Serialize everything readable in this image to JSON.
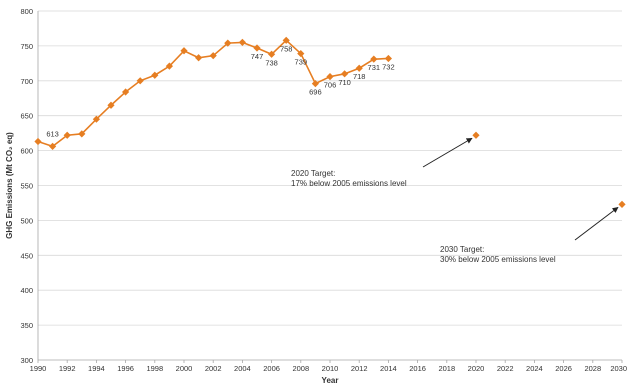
{
  "chart_data": {
    "type": "line",
    "xlabel": "Year",
    "ylabel": "GHG Emissions (Mt CO₂ eq)",
    "xlim": [
      1990,
      2030
    ],
    "ylim": [
      300,
      800
    ],
    "x_ticks": [
      1990,
      1992,
      1994,
      1996,
      1998,
      2000,
      2002,
      2004,
      2006,
      2008,
      2010,
      2012,
      2014,
      2016,
      2018,
      2020,
      2022,
      2024,
      2026,
      2028,
      2030
    ],
    "x_tick_labels": [
      "1990",
      "1992",
      "1994",
      "1996",
      "1998",
      "2000",
      "2002",
      "2004",
      "2006",
      "2008",
      "2010",
      "2012",
      "2014",
      "2016",
      "2018",
      "2020",
      "2022",
      "2024",
      "2026",
      "2028",
      "2030"
    ],
    "y_ticks": [
      300,
      350,
      400,
      450,
      500,
      550,
      600,
      650,
      700,
      750,
      800
    ],
    "y_tick_labels": [
      "300",
      "350",
      "400",
      "450",
      "500",
      "550",
      "600",
      "650",
      "700",
      "750",
      "800"
    ],
    "grid": "horizontal",
    "series_color": "#e67e22",
    "series": [
      {
        "x": [
          1990,
          1991,
          1992,
          1993,
          1994,
          1995,
          1996,
          1997,
          1998,
          1999,
          2000,
          2001,
          2002,
          2003,
          2004,
          2005,
          2006,
          2007,
          2008,
          2009,
          2010,
          2011,
          2012,
          2013,
          2014
        ],
        "values": [
          613,
          606,
          622,
          624,
          645,
          665,
          684,
          700,
          708,
          721,
          743,
          733,
          736,
          754,
          755,
          747,
          738,
          758,
          739,
          696,
          706,
          710,
          718,
          731,
          732
        ]
      }
    ],
    "data_labels": [
      {
        "x": 1991,
        "y": 613,
        "text": "613",
        "pos": "above"
      },
      {
        "x": 2005,
        "y": 747,
        "text": "747",
        "pos": "below"
      },
      {
        "x": 2006,
        "y": 738,
        "text": "738",
        "pos": "below"
      },
      {
        "x": 2007,
        "y": 758,
        "text": "758",
        "pos": "below"
      },
      {
        "x": 2008,
        "y": 739,
        "text": "739",
        "pos": "below"
      },
      {
        "x": 2009,
        "y": 696,
        "text": "696",
        "pos": "below"
      },
      {
        "x": 2010,
        "y": 706,
        "text": "706",
        "pos": "below"
      },
      {
        "x": 2011,
        "y": 710,
        "text": "710",
        "pos": "below"
      },
      {
        "x": 2012,
        "y": 718,
        "text": "718",
        "pos": "below"
      },
      {
        "x": 2013,
        "y": 731,
        "text": "731",
        "pos": "below"
      },
      {
        "x": 2014,
        "y": 732,
        "text": "732",
        "pos": "below"
      }
    ],
    "targets": [
      {
        "x": 2020,
        "y": 622,
        "label_lines": [
          "2020 Target:",
          "17% below 2005 emissions level"
        ]
      },
      {
        "x": 2030,
        "y": 523,
        "label_lines": [
          "2030 Target:",
          "30% below 2005 emissions level"
        ]
      }
    ]
  }
}
